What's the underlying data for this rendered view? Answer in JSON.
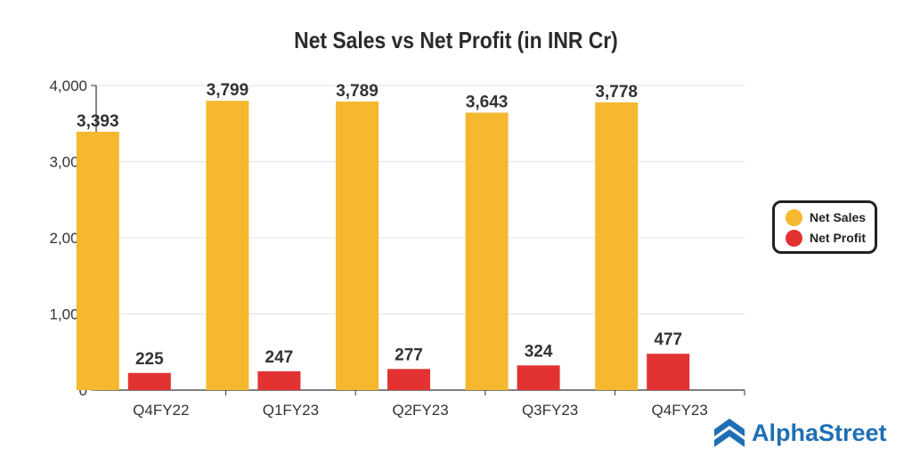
{
  "chart_data": {
    "type": "bar",
    "title": "Net Sales vs Net Profit (in INR Cr)",
    "categories": [
      "Q4FY22",
      "Q1FY23",
      "Q2FY23",
      "Q3FY23",
      "Q4FY23"
    ],
    "series": [
      {
        "name": "Net Sales",
        "values": [
          3393,
          3799,
          3789,
          3643,
          3778
        ],
        "color": "#f5b82e",
        "labels": [
          "3,393",
          "3,799",
          "3,789",
          "3,643",
          "3,778"
        ]
      },
      {
        "name": "Net Profit",
        "values": [
          225,
          247,
          277,
          324,
          477
        ],
        "color": "#e23232",
        "labels": [
          "225",
          "247",
          "277",
          "324",
          "477"
        ]
      }
    ],
    "ylim": [
      0,
      4000
    ],
    "yticks": [
      0,
      1000,
      2000,
      3000,
      4000
    ],
    "ytick_labels": [
      "0",
      "1,000",
      "2,000",
      "3,000",
      "4,000"
    ],
    "grid": true,
    "legend": "right"
  },
  "brand": {
    "name": "AlphaStreet",
    "icon": "alphastreet-logo-icon",
    "color": "#1f6fb5"
  }
}
